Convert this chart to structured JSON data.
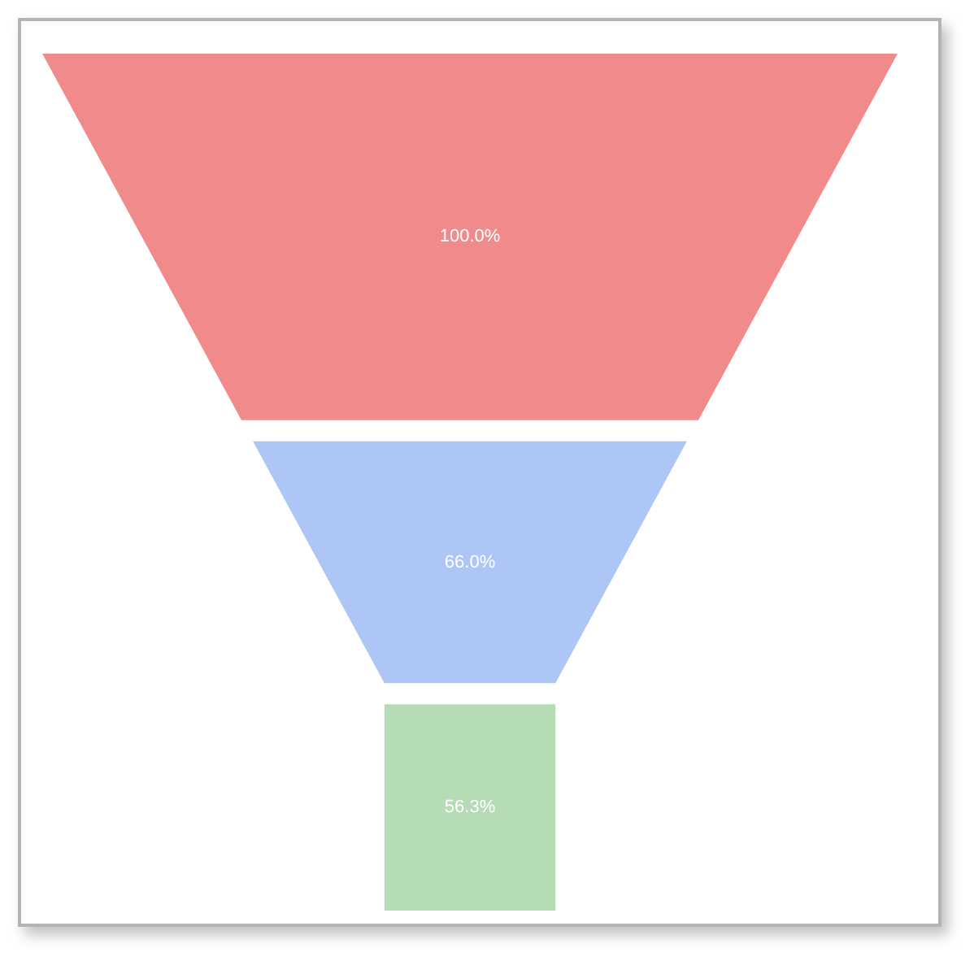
{
  "chart_data": {
    "type": "other",
    "categories": [
      null,
      null,
      null
    ],
    "values": [
      100.0,
      66.0,
      56.3
    ],
    "value_labels": [
      "100.0%",
      "66.0%",
      "56.3%"
    ],
    "colors": [
      "#f18b8b",
      "#aec6f6",
      "#b5dcb4"
    ]
  }
}
